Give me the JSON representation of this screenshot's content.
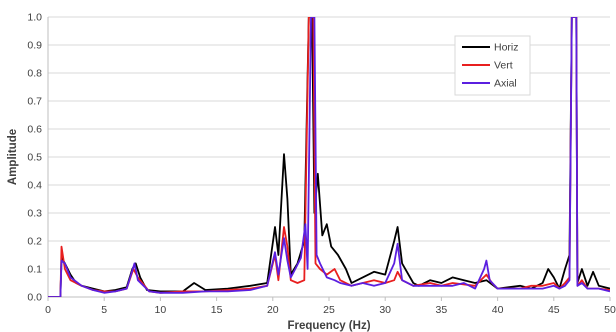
{
  "chart_data": {
    "type": "line",
    "title": "",
    "xlabel": "Frequency (Hz)",
    "ylabel": "Amplitude",
    "xlim": [
      0,
      50
    ],
    "ylim": [
      0,
      1.0
    ],
    "xticks": [
      "0",
      "5",
      "10",
      "15",
      "20",
      "25",
      "30",
      "35",
      "40",
      "45",
      "50"
    ],
    "yticks": [
      "0.0",
      "0.1",
      "0.2",
      "0.3",
      "0.4",
      "0.5",
      "0.6",
      "0.7",
      "0.8",
      "0.9",
      "1.0"
    ],
    "grid": "horizontal",
    "legend_position": "top-right",
    "series": [
      {
        "name": "Horiz",
        "color": "#000000",
        "points": [
          [
            0,
            0
          ],
          [
            1.1,
            0
          ],
          [
            1.2,
            0.14
          ],
          [
            1.5,
            0.12
          ],
          [
            2,
            0.08
          ],
          [
            2.5,
            0.05
          ],
          [
            3,
            0.04
          ],
          [
            4,
            0.03
          ],
          [
            5,
            0.02
          ],
          [
            6,
            0.025
          ],
          [
            7,
            0.035
          ],
          [
            7.5,
            0.1
          ],
          [
            7.8,
            0.12
          ],
          [
            8.2,
            0.07
          ],
          [
            8.8,
            0.025
          ],
          [
            10,
            0.02
          ],
          [
            12,
            0.02
          ],
          [
            13,
            0.05
          ],
          [
            14,
            0.025
          ],
          [
            16,
            0.03
          ],
          [
            18,
            0.04
          ],
          [
            19.5,
            0.05
          ],
          [
            20.2,
            0.25
          ],
          [
            20.5,
            0.15
          ],
          [
            21,
            0.51
          ],
          [
            21.3,
            0.35
          ],
          [
            21.6,
            0.08
          ],
          [
            22.2,
            0.12
          ],
          [
            22.8,
            0.2
          ],
          [
            23.2,
            1.0
          ],
          [
            23.5,
            1.0
          ],
          [
            23.7,
            0.3
          ],
          [
            24,
            0.44
          ],
          [
            24.4,
            0.22
          ],
          [
            24.8,
            0.26
          ],
          [
            25.2,
            0.18
          ],
          [
            25.8,
            0.15
          ],
          [
            26.5,
            0.1
          ],
          [
            27,
            0.05
          ],
          [
            28,
            0.07
          ],
          [
            29,
            0.09
          ],
          [
            30,
            0.08
          ],
          [
            30.8,
            0.2
          ],
          [
            31.1,
            0.25
          ],
          [
            31.5,
            0.12
          ],
          [
            32.5,
            0.05
          ],
          [
            33,
            0.04
          ],
          [
            34,
            0.06
          ],
          [
            35,
            0.05
          ],
          [
            36,
            0.07
          ],
          [
            37,
            0.06
          ],
          [
            38,
            0.05
          ],
          [
            39,
            0.06
          ],
          [
            40,
            0.03
          ],
          [
            42,
            0.04
          ],
          [
            43,
            0.03
          ],
          [
            44,
            0.05
          ],
          [
            44.5,
            0.1
          ],
          [
            45,
            0.07
          ],
          [
            45.5,
            0.03
          ],
          [
            46,
            0.1
          ],
          [
            46.4,
            0.15
          ],
          [
            46.6,
            1.0
          ],
          [
            47,
            1.0
          ],
          [
            47.1,
            0.05
          ],
          [
            47.5,
            0.1
          ],
          [
            48,
            0.04
          ],
          [
            48.5,
            0.09
          ],
          [
            49,
            0.04
          ],
          [
            50,
            0.03
          ]
        ]
      },
      {
        "name": "Vert",
        "color": "#e81f1f",
        "points": [
          [
            0,
            0
          ],
          [
            1.1,
            0
          ],
          [
            1.2,
            0.18
          ],
          [
            1.5,
            0.1
          ],
          [
            2,
            0.06
          ],
          [
            3,
            0.04
          ],
          [
            4,
            0.025
          ],
          [
            5,
            0.02
          ],
          [
            6,
            0.02
          ],
          [
            7,
            0.03
          ],
          [
            7.6,
            0.1
          ],
          [
            8,
            0.07
          ],
          [
            9,
            0.02
          ],
          [
            10,
            0.015
          ],
          [
            12,
            0.02
          ],
          [
            14,
            0.02
          ],
          [
            16,
            0.025
          ],
          [
            18,
            0.03
          ],
          [
            19.5,
            0.04
          ],
          [
            20.2,
            0.15
          ],
          [
            20.5,
            0.06
          ],
          [
            21,
            0.25
          ],
          [
            21.3,
            0.18
          ],
          [
            21.6,
            0.06
          ],
          [
            22.2,
            0.05
          ],
          [
            22.8,
            0.06
          ],
          [
            23.2,
            1.0
          ],
          [
            23.6,
            1.0
          ],
          [
            23.8,
            0.12
          ],
          [
            24.2,
            0.1
          ],
          [
            24.8,
            0.08
          ],
          [
            25.5,
            0.1
          ],
          [
            26,
            0.06
          ],
          [
            27,
            0.04
          ],
          [
            28,
            0.05
          ],
          [
            29,
            0.06
          ],
          [
            30,
            0.05
          ],
          [
            30.8,
            0.06
          ],
          [
            31.1,
            0.09
          ],
          [
            31.5,
            0.06
          ],
          [
            32.5,
            0.04
          ],
          [
            34,
            0.05
          ],
          [
            35,
            0.04
          ],
          [
            36,
            0.05
          ],
          [
            38,
            0.04
          ],
          [
            39,
            0.08
          ],
          [
            39.5,
            0.05
          ],
          [
            40,
            0.03
          ],
          [
            42,
            0.03
          ],
          [
            43,
            0.04
          ],
          [
            44,
            0.04
          ],
          [
            45,
            0.05
          ],
          [
            45.5,
            0.03
          ],
          [
            46,
            0.05
          ],
          [
            46.4,
            0.07
          ],
          [
            46.6,
            1.0
          ],
          [
            47,
            1.0
          ],
          [
            47.1,
            0.04
          ],
          [
            47.5,
            0.06
          ],
          [
            48,
            0.03
          ],
          [
            49,
            0.03
          ],
          [
            50,
            0.025
          ]
        ]
      },
      {
        "name": "Axial",
        "color": "#5b1fe0",
        "points": [
          [
            0,
            0
          ],
          [
            1.1,
            0
          ],
          [
            1.2,
            0.13
          ],
          [
            1.5,
            0.12
          ],
          [
            2,
            0.07
          ],
          [
            3,
            0.04
          ],
          [
            4,
            0.025
          ],
          [
            5,
            0.015
          ],
          [
            6,
            0.02
          ],
          [
            7,
            0.03
          ],
          [
            7.7,
            0.12
          ],
          [
            8,
            0.06
          ],
          [
            9,
            0.02
          ],
          [
            10,
            0.015
          ],
          [
            12,
            0.015
          ],
          [
            14,
            0.02
          ],
          [
            16,
            0.02
          ],
          [
            18,
            0.025
          ],
          [
            19.5,
            0.04
          ],
          [
            20.2,
            0.16
          ],
          [
            20.5,
            0.08
          ],
          [
            21,
            0.21
          ],
          [
            21.3,
            0.13
          ],
          [
            21.6,
            0.07
          ],
          [
            22,
            0.1
          ],
          [
            22.5,
            0.14
          ],
          [
            22.9,
            0.26
          ],
          [
            23.1,
            0.1
          ],
          [
            23.4,
            1.0
          ],
          [
            23.7,
            1.0
          ],
          [
            23.9,
            0.15
          ],
          [
            24.2,
            0.12
          ],
          [
            24.8,
            0.07
          ],
          [
            25.5,
            0.06
          ],
          [
            26,
            0.05
          ],
          [
            27,
            0.04
          ],
          [
            28,
            0.05
          ],
          [
            29,
            0.04
          ],
          [
            30,
            0.05
          ],
          [
            30.8,
            0.12
          ],
          [
            31.1,
            0.19
          ],
          [
            31.5,
            0.06
          ],
          [
            32.5,
            0.04
          ],
          [
            34,
            0.04
          ],
          [
            35,
            0.04
          ],
          [
            36,
            0.04
          ],
          [
            37,
            0.05
          ],
          [
            38,
            0.03
          ],
          [
            38.8,
            0.1
          ],
          [
            39,
            0.13
          ],
          [
            39.3,
            0.06
          ],
          [
            40,
            0.03
          ],
          [
            42,
            0.03
          ],
          [
            43,
            0.03
          ],
          [
            44,
            0.03
          ],
          [
            45,
            0.04
          ],
          [
            45.5,
            0.03
          ],
          [
            46,
            0.04
          ],
          [
            46.4,
            0.06
          ],
          [
            46.6,
            1.0
          ],
          [
            47,
            1.0
          ],
          [
            47.1,
            0.04
          ],
          [
            47.5,
            0.05
          ],
          [
            48,
            0.03
          ],
          [
            49,
            0.03
          ],
          [
            50,
            0.02
          ]
        ]
      }
    ]
  }
}
